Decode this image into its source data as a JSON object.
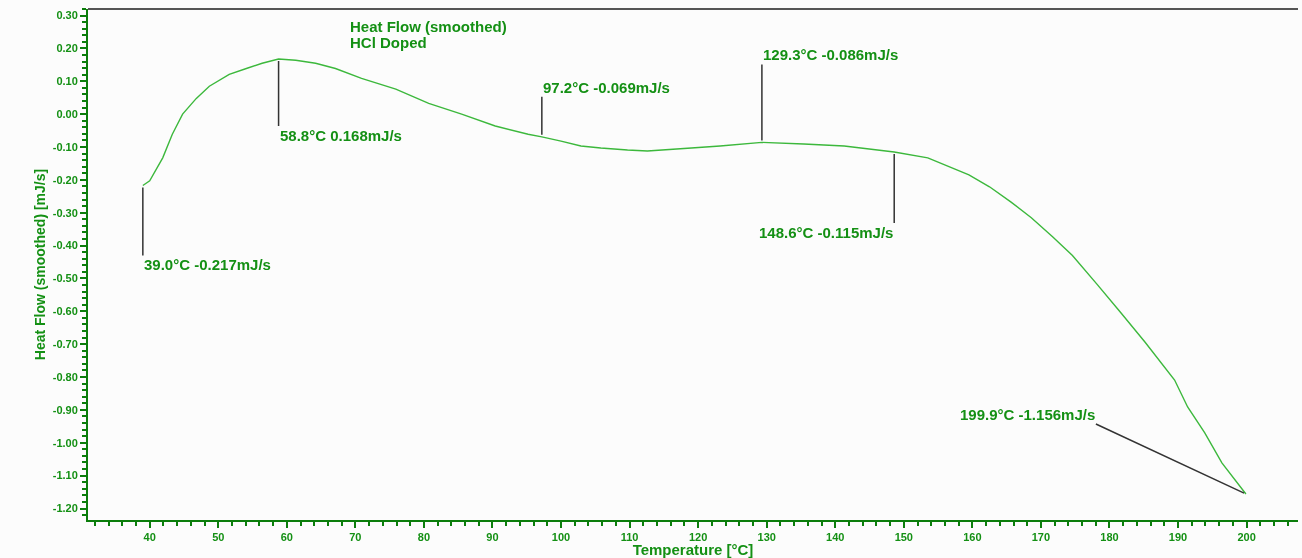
{
  "chart_data": {
    "type": "line",
    "xlabel": "Temperature [°C]",
    "ylabel": "Heat Flow (smoothed) [mJ/s]",
    "x": [
      39.0,
      40.0,
      41.9,
      43.3,
      44.8,
      46.8,
      48.7,
      51.6,
      54.1,
      56.4,
      58.8,
      61.3,
      64.2,
      67.1,
      70.9,
      75.9,
      80.7,
      85.5,
      90.4,
      95.2,
      97.2,
      100.0,
      102.9,
      105.8,
      109.7,
      112.6,
      119.0,
      123.2,
      129.3,
      135.4,
      141.3,
      148.6,
      153.5,
      159.5,
      162.5,
      165.6,
      168.6,
      171.7,
      174.6,
      178.2,
      181.6,
      185.2,
      189.5,
      191.4,
      193.9,
      196.4,
      199.9
    ],
    "series": [
      {
        "name": "Heat Flow (smoothed)",
        "color": "#3cb83c",
        "values": [
          -0.217,
          -0.203,
          -0.133,
          -0.061,
          0.0,
          0.048,
          0.085,
          0.121,
          0.139,
          0.155,
          0.168,
          0.164,
          0.155,
          0.139,
          0.109,
          0.076,
          0.033,
          0.0,
          -0.036,
          -0.061,
          -0.069,
          -0.082,
          -0.097,
          -0.103,
          -0.109,
          -0.112,
          -0.103,
          -0.097,
          -0.086,
          -0.091,
          -0.097,
          -0.115,
          -0.133,
          -0.185,
          -0.221,
          -0.267,
          -0.315,
          -0.373,
          -0.43,
          -0.518,
          -0.603,
          -0.694,
          -0.809,
          -0.891,
          -0.97,
          -1.061,
          -1.156
        ]
      }
    ],
    "xlim": [
      31,
      207.5
    ],
    "ylim": [
      -1.235,
      0.32
    ],
    "xticks": [
      40,
      50,
      60,
      70,
      80,
      90,
      100,
      110,
      120,
      130,
      140,
      150,
      160,
      170,
      180,
      190,
      200
    ],
    "yticks": [
      {
        "value": 0.3,
        "label": "0.30"
      },
      {
        "value": 0.2,
        "label": "0.20"
      },
      {
        "value": 0.1,
        "label": "0.10"
      },
      {
        "value": 0,
        "label": "0.00"
      },
      {
        "value": -0.1,
        "label": "-0.10"
      },
      {
        "value": -0.2,
        "label": "-0.20"
      },
      {
        "value": -0.3,
        "label": "-0.30"
      },
      {
        "value": -0.4,
        "label": "-0.40"
      },
      {
        "value": -0.5,
        "label": "-0.50"
      },
      {
        "value": -0.6,
        "label": "-0.60"
      },
      {
        "value": -0.7,
        "label": "-0.70"
      },
      {
        "value": -0.8,
        "label": "-0.80"
      },
      {
        "value": -0.9,
        "label": "-0.90"
      },
      {
        "value": -1.0,
        "label": "-1.00"
      },
      {
        "value": -1.1,
        "label": "-1.10"
      },
      {
        "value": -1.2,
        "label": "-1.20"
      }
    ],
    "annotations": [
      "HCl Doped",
      {
        "text": "39.0°C -0.217mJ/s",
        "x": 39.0,
        "y": -0.217
      },
      {
        "text": "58.8°C 0.168mJ/s",
        "x": 58.8,
        "y": 0.168
      },
      {
        "text": "97.2°C -0.069mJ/s",
        "x": 97.2,
        "y": -0.069
      },
      {
        "text": "129.3°C -0.086mJ/s",
        "x": 129.3,
        "y": -0.086
      },
      {
        "text": "148.6°C -0.115mJ/s",
        "x": 148.6,
        "y": -0.115
      },
      {
        "text": "199.9°C -1.156mJ/s",
        "x": 199.9,
        "y": -1.156
      }
    ],
    "grid": false,
    "legend": false,
    "marker": "none",
    "line_style": "solid"
  }
}
